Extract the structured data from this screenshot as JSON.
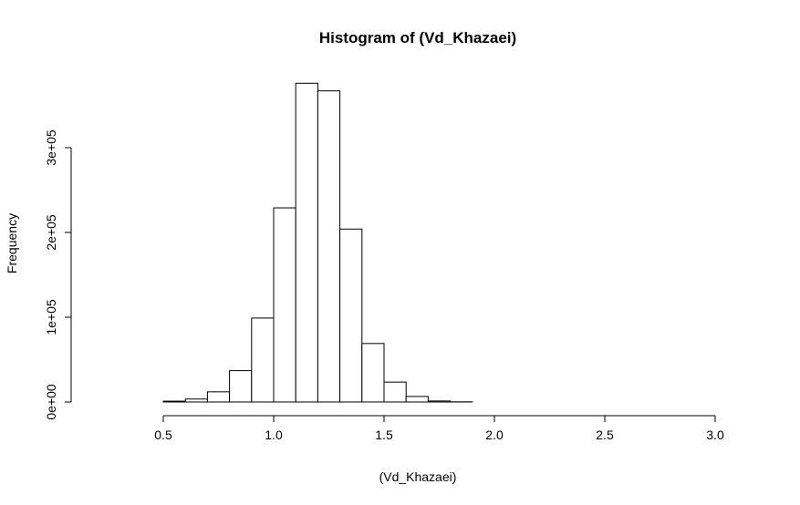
{
  "chart_data": {
    "type": "bar",
    "title": "Histogram of (Vd_Khazaei)",
    "xlabel": "(Vd_Khazaei)",
    "ylabel": "Frequency",
    "xlim": [
      0.2,
      3.1
    ],
    "ylim": [
      0,
      380000
    ],
    "x_ticks": [
      0.5,
      1.0,
      1.5,
      2.0,
      2.5,
      3.0
    ],
    "x_tick_labels": [
      "0.5",
      "1.0",
      "1.5",
      "2.0",
      "2.5",
      "3.0"
    ],
    "y_ticks": [
      0,
      100000,
      200000,
      300000
    ],
    "y_tick_labels": [
      "0e+00",
      "1e+05",
      "2e+05",
      "3e+05"
    ],
    "bin_width": 0.1,
    "bins": [
      {
        "start": 0.2,
        "end": 0.3,
        "count": 0
      },
      {
        "start": 0.3,
        "end": 0.4,
        "count": 0
      },
      {
        "start": 0.4,
        "end": 0.5,
        "count": 0
      },
      {
        "start": 0.5,
        "end": 0.6,
        "count": 1000
      },
      {
        "start": 0.6,
        "end": 0.7,
        "count": 3500
      },
      {
        "start": 0.7,
        "end": 0.8,
        "count": 12000
      },
      {
        "start": 0.8,
        "end": 0.9,
        "count": 37000
      },
      {
        "start": 0.9,
        "end": 1.0,
        "count": 99000
      },
      {
        "start": 1.0,
        "end": 1.1,
        "count": 229000
      },
      {
        "start": 1.1,
        "end": 1.2,
        "count": 376000
      },
      {
        "start": 1.2,
        "end": 1.3,
        "count": 367000
      },
      {
        "start": 1.3,
        "end": 1.4,
        "count": 204000
      },
      {
        "start": 1.4,
        "end": 1.5,
        "count": 69000
      },
      {
        "start": 1.5,
        "end": 1.6,
        "count": 23500
      },
      {
        "start": 1.6,
        "end": 1.7,
        "count": 6500
      },
      {
        "start": 1.7,
        "end": 1.8,
        "count": 1200
      },
      {
        "start": 1.8,
        "end": 1.9,
        "count": 200
      },
      {
        "start": 1.9,
        "end": 2.0,
        "count": 0
      },
      {
        "start": 2.0,
        "end": 2.1,
        "count": 0
      },
      {
        "start": 2.1,
        "end": 2.2,
        "count": 0
      },
      {
        "start": 2.2,
        "end": 2.3,
        "count": 0
      },
      {
        "start": 2.3,
        "end": 2.4,
        "count": 0
      },
      {
        "start": 2.4,
        "end": 2.5,
        "count": 0
      },
      {
        "start": 2.5,
        "end": 2.6,
        "count": 0
      },
      {
        "start": 2.6,
        "end": 2.7,
        "count": 0
      },
      {
        "start": 2.7,
        "end": 2.8,
        "count": 0
      },
      {
        "start": 2.8,
        "end": 2.9,
        "count": 0
      },
      {
        "start": 2.9,
        "end": 3.0,
        "count": 0
      },
      {
        "start": 3.0,
        "end": 3.1,
        "count": 0
      }
    ],
    "grid": false,
    "legend": "none"
  }
}
